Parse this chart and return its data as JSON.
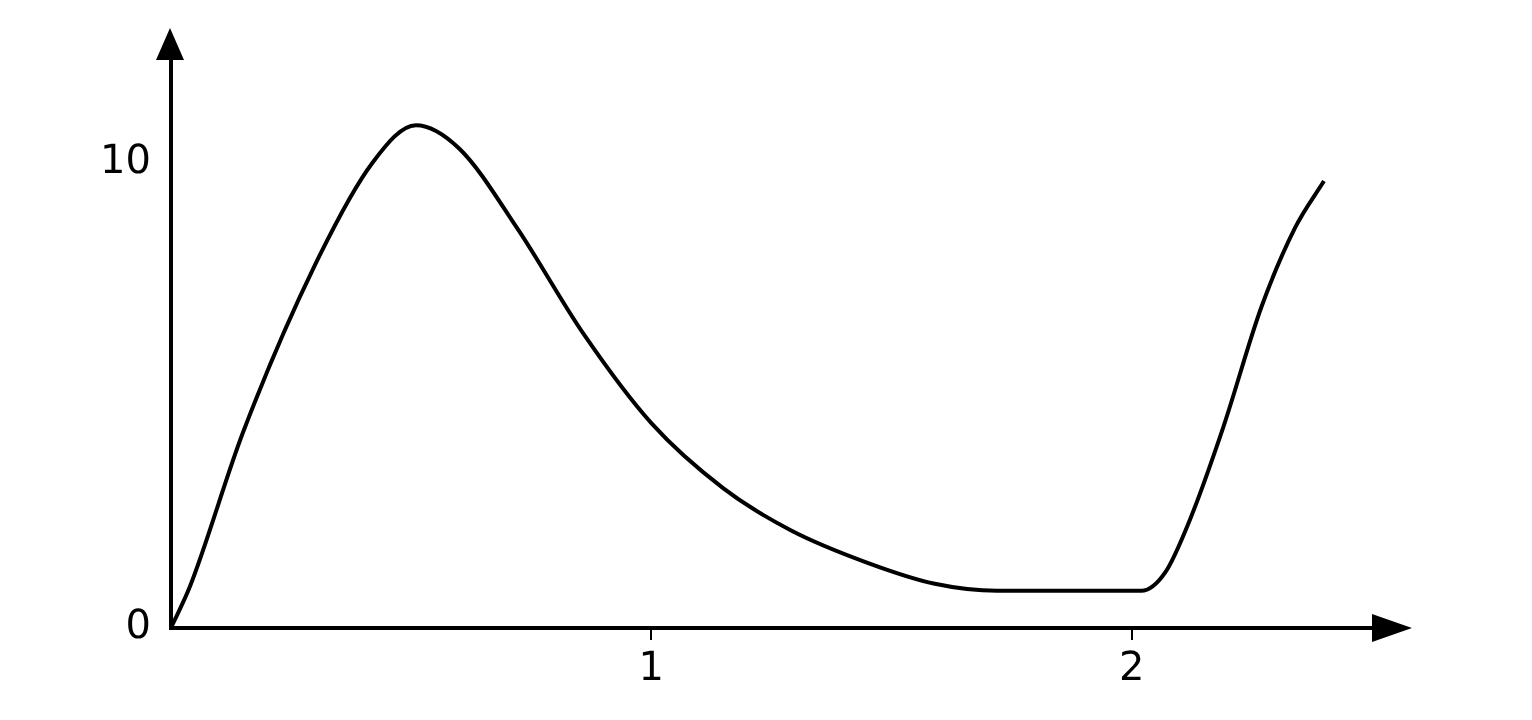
{
  "chart_data": {
    "type": "line",
    "x": [
      0,
      0.04,
      0.15,
      0.3,
      0.42,
      0.51,
      0.6,
      0.72,
      0.86,
      1,
      1.15,
      1.29,
      1.45,
      1.59,
      1.72,
      1.9,
      2.02,
      2.07,
      2.12,
      2.19,
      2.27,
      2.34,
      2.4
    ],
    "values": [
      0,
      0.9,
      4.2,
      7.8,
      10,
      10.8,
      10.3,
      8.6,
      6.3,
      4.4,
      3,
      2.1,
      1.4,
      0.95,
      0.8,
      0.8,
      0.8,
      1.2,
      2.3,
      4.3,
      6.9,
      8.6,
      9.6
    ],
    "color": "#000000",
    "xlim": [
      0,
      2.5
    ],
    "ylim": [
      0,
      12.2
    ],
    "xticks": [
      1,
      2
    ],
    "yticks": [
      0,
      10
    ],
    "grid": false,
    "legend": false,
    "marker": "none",
    "line_style": "solid"
  }
}
